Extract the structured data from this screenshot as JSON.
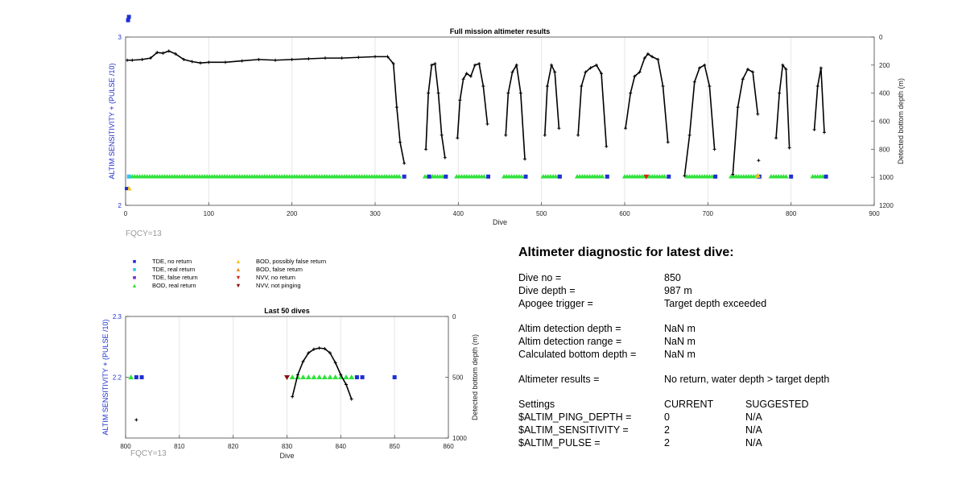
{
  "chart_data": [
    {
      "type": "scatter",
      "title": "Full mission altimeter results",
      "xlabel": "Dive",
      "ylabel_left": "ALTIM SENSITIVITY + (PULSE /10)",
      "ylabel_right": "Detected bottom depth (m)",
      "xlim": [
        0,
        900
      ],
      "ylim_left": [
        2,
        3
      ],
      "ylim_right_reversed": [
        0,
        1200
      ],
      "x_ticks": [
        "0",
        "100",
        "200",
        "300",
        "400",
        "500",
        "600",
        "700",
        "800",
        "900"
      ],
      "y_left_ticks": [
        "2",
        "3"
      ],
      "y_right_ticks": [
        "0",
        "200",
        "400",
        "600",
        "800",
        "1000",
        "1200"
      ],
      "grid": true,
      "annotation": "FQCY=13",
      "settings_series": [
        {
          "x": 2,
          "y": 2.1
        },
        {
          "x": 3,
          "y": 3.1
        }
      ],
      "bottom_depth_segments": [
        {
          "x": [
            2,
            8,
            20,
            30,
            38,
            45,
            52,
            60,
            70,
            80,
            90,
            100,
            120,
            140,
            160,
            180,
            200,
            220,
            240,
            260,
            280,
            300,
            315,
            322,
            326,
            330,
            335
          ],
          "y": [
            165,
            165,
            160,
            150,
            110,
            115,
            100,
            120,
            160,
            175,
            185,
            180,
            180,
            170,
            160,
            165,
            160,
            155,
            150,
            150,
            145,
            140,
            140,
            190,
            500,
            750,
            900
          ]
        },
        {
          "x": [
            361,
            364,
            368,
            372,
            376,
            380,
            384
          ],
          "y": [
            800,
            400,
            200,
            190,
            400,
            700,
            860
          ]
        },
        {
          "x": [
            399,
            402,
            406,
            410,
            415,
            420,
            425,
            430,
            435
          ],
          "y": [
            720,
            450,
            300,
            260,
            280,
            200,
            190,
            350,
            620
          ]
        },
        {
          "x": [
            457,
            460,
            465,
            470,
            475,
            480
          ],
          "y": [
            700,
            400,
            250,
            200,
            400,
            870
          ]
        },
        {
          "x": [
            504,
            507,
            512,
            516,
            521
          ],
          "y": [
            700,
            350,
            200,
            250,
            650
          ]
        },
        {
          "x": [
            544,
            548,
            553,
            559,
            566,
            572,
            578
          ],
          "y": [
            700,
            350,
            250,
            220,
            200,
            260,
            780
          ]
        },
        {
          "x": [
            601,
            607,
            612,
            618,
            624,
            628,
            633,
            640,
            646,
            652
          ],
          "y": [
            650,
            400,
            280,
            250,
            150,
            120,
            140,
            160,
            350,
            750
          ]
        },
        {
          "x": [
            672,
            678,
            684,
            690,
            696,
            702,
            708
          ],
          "y": [
            990,
            700,
            320,
            220,
            200,
            350,
            800
          ]
        },
        {
          "x": [
            730,
            736,
            742,
            748,
            754,
            760
          ],
          "y": [
            980,
            500,
            300,
            230,
            250,
            550
          ]
        },
        {
          "x": [
            782,
            786,
            790,
            794,
            798
          ],
          "y": [
            720,
            400,
            200,
            230,
            790
          ]
        },
        {
          "x": [
            828,
            832,
            836,
            840
          ],
          "y": [
            660,
            350,
            220,
            680
          ]
        },
        {
          "x": [
            761
          ],
          "y": [
            880
          ]
        }
      ],
      "returns_ranges": {
        "TDE, no return": [
          335,
          365,
          385,
          436,
          481,
          522,
          579,
          653,
          709,
          762,
          800,
          842
        ],
        "BOD, real return": [
          [
            5,
            330
          ],
          [
            360,
            383
          ],
          [
            398,
            432
          ],
          [
            455,
            478
          ],
          [
            502,
            520
          ],
          [
            543,
            573
          ],
          [
            600,
            648
          ],
          [
            675,
            705
          ],
          [
            728,
            758
          ],
          [
            776,
            796
          ],
          [
            826,
            840
          ]
        ]
      }
    },
    {
      "type": "scatter",
      "title": "Last 50 dives",
      "xlabel": "Dive",
      "ylabel_left": "ALTIM SENSITIVITY + (PULSE /10)",
      "ylabel_right": "Detected bottom depth (m)",
      "xlim": [
        800,
        860
      ],
      "ylim_left": [
        2.1,
        2.3
      ],
      "ylim_right_reversed": [
        0,
        1000
      ],
      "x_ticks": [
        "800",
        "810",
        "820",
        "830",
        "840",
        "850",
        "860"
      ],
      "y_left_ticks": [
        "2.2",
        "2.3"
      ],
      "y_right_ticks": [
        "0",
        "500",
        "1000"
      ],
      "grid": true,
      "annotation": "FQCY=13",
      "bod_real_return_x": [
        801,
        831,
        832,
        833,
        834,
        835,
        836,
        837,
        838,
        839,
        840,
        841,
        842
      ],
      "tde_no_return_x": [
        802,
        803,
        843,
        844,
        850
      ],
      "nvv_not_pinging_x": [
        830
      ],
      "settings_y": 2.2,
      "depth_x": [
        831,
        832,
        833,
        834,
        835,
        836,
        837,
        838,
        839,
        840,
        841,
        842
      ],
      "depth_y": [
        660,
        480,
        370,
        300,
        270,
        260,
        265,
        300,
        380,
        480,
        560,
        680
      ],
      "isolated_point": {
        "x": 802,
        "y": 2.13
      }
    }
  ],
  "legend": [
    {
      "label": "TDE, no return",
      "marker": "square",
      "color": "#1f2fd0"
    },
    {
      "label": "TDE, real return",
      "marker": "square",
      "color": "#33c6e8"
    },
    {
      "label": "TDE, false return",
      "marker": "square",
      "color": "#7b2fc0"
    },
    {
      "label": "BOD, real return",
      "marker": "triangle-up",
      "color": "#2fe23a"
    },
    {
      "label": "BOD, possibly false return",
      "marker": "triangle-up",
      "color": "#f2c21c"
    },
    {
      "label": "BOD, false return",
      "marker": "triangle-up",
      "color": "#f08b1a"
    },
    {
      "label": "NVV, no return",
      "marker": "triangle-down",
      "color": "#d8261c"
    },
    {
      "label": "NVV, not pinging",
      "marker": "triangle-down",
      "color": "#8b0e0e"
    }
  ],
  "colors": {
    "depth_line": "#000000",
    "ylabel": "#1f2fd0",
    "grid": "#e6e6e6",
    "fqcy": "#9a9a9a"
  },
  "diagnostic": {
    "title": "Altimeter diagnostic for latest dive:",
    "dive_no_label": "Dive no =",
    "dive_no_value": "850",
    "dive_depth_label": "Dive depth =",
    "dive_depth_value": "987 m",
    "apogee_label": "Apogee trigger =",
    "apogee_value": "Target depth exceeded",
    "det_depth_label": "Altim detection depth =",
    "det_depth_value": "NaN m",
    "det_range_label": "Altim detection range =",
    "det_range_value": "NaN m",
    "calc_depth_label": "Calculated bottom depth =",
    "calc_depth_value": "NaN m",
    "results_label": "Altimeter results =",
    "results_value": "No return, water depth > target depth",
    "settings_label": "Settings",
    "current_label": "CURRENT",
    "suggested_label": "SUGGESTED",
    "ping_depth_label": "$ALTIM_PING_DEPTH =",
    "ping_depth_current": "0",
    "ping_depth_suggested": "N/A",
    "sensitivity_label": "$ALTIM_SENSITIVITY =",
    "sensitivity_current": "2",
    "sensitivity_suggested": "N/A",
    "pulse_label": "$ALTIM_PULSE =",
    "pulse_current": "2",
    "pulse_suggested": "N/A"
  }
}
